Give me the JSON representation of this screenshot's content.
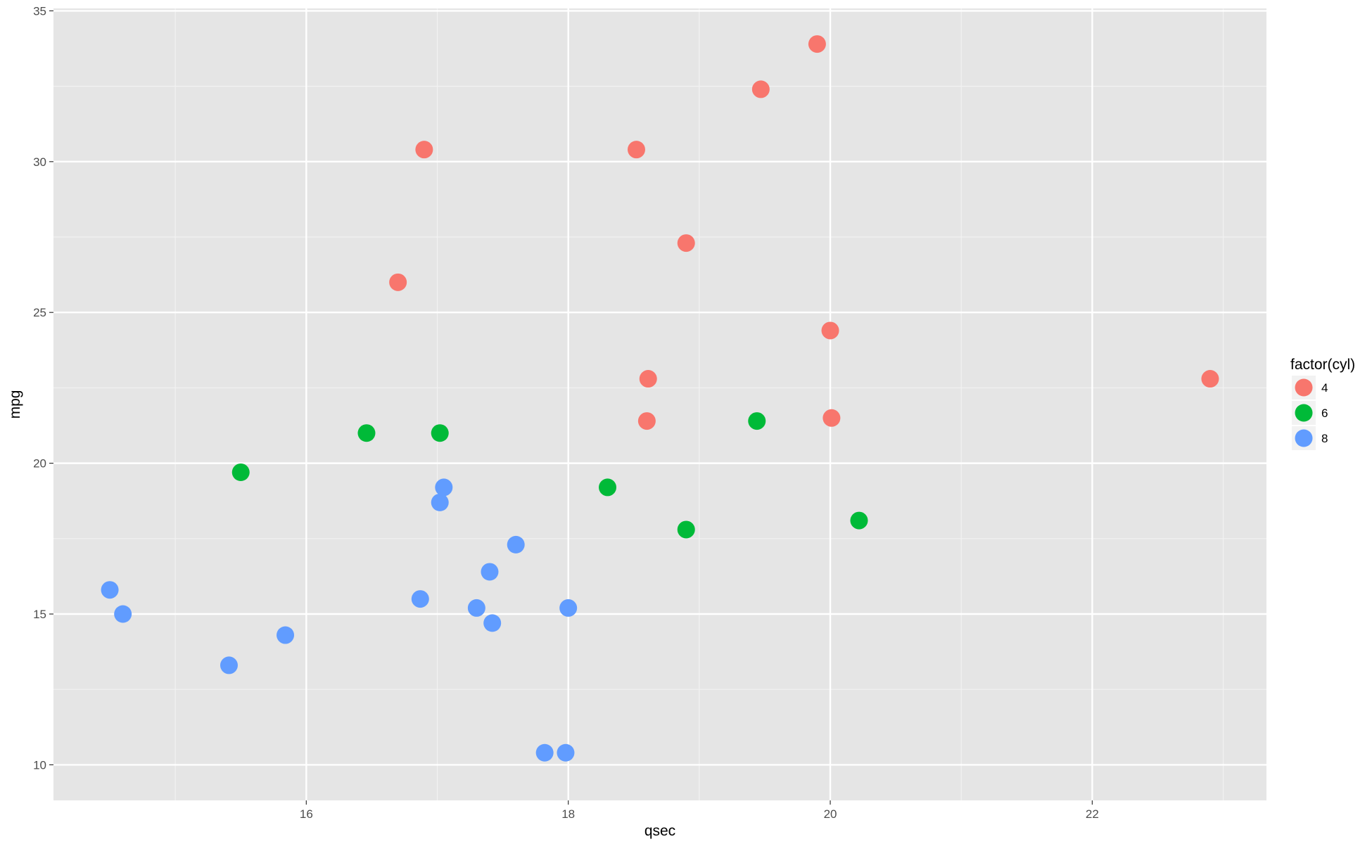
{
  "chart_data": {
    "type": "scatter",
    "title": "",
    "xlabel": "qsec",
    "ylabel": "mpg",
    "xlim": [
      14.07,
      23.33
    ],
    "ylim": [
      8.82,
      35.08
    ],
    "x_ticks": [
      16,
      18,
      20,
      22
    ],
    "x_tick_labels": [
      "16",
      "18",
      "20",
      "22"
    ],
    "x_minor_ticks": [
      15,
      17,
      19,
      21,
      23
    ],
    "y_ticks": [
      10,
      15,
      20,
      25,
      30,
      35
    ],
    "y_tick_labels": [
      "10",
      "15",
      "20",
      "25",
      "30",
      "35"
    ],
    "y_minor_ticks": [
      12.5,
      17.5,
      22.5,
      27.5,
      32.5
    ],
    "grid": true,
    "legend": {
      "title": "factor(cyl)",
      "placement": "right"
    },
    "series": [
      {
        "name": "4",
        "color": "#F8766D",
        "points": [
          [
            18.61,
            22.8
          ],
          [
            20.0,
            24.4
          ],
          [
            22.9,
            22.8
          ],
          [
            19.47,
            32.4
          ],
          [
            18.52,
            30.4
          ],
          [
            19.9,
            33.9
          ],
          [
            20.01,
            21.5
          ],
          [
            18.9,
            27.3
          ],
          [
            16.7,
            26.0
          ],
          [
            16.9,
            30.4
          ],
          [
            18.6,
            21.4
          ]
        ]
      },
      {
        "name": "6",
        "color": "#00BA38",
        "points": [
          [
            16.46,
            21.0
          ],
          [
            17.02,
            21.0
          ],
          [
            19.44,
            21.4
          ],
          [
            20.22,
            18.1
          ],
          [
            18.3,
            19.2
          ],
          [
            18.9,
            17.8
          ],
          [
            15.5,
            19.7
          ]
        ]
      },
      {
        "name": "8",
        "color": "#619CFF",
        "points": [
          [
            17.02,
            18.7
          ],
          [
            15.84,
            14.3
          ],
          [
            17.4,
            16.4
          ],
          [
            17.6,
            17.3
          ],
          [
            18.0,
            15.2
          ],
          [
            17.98,
            10.4
          ],
          [
            17.82,
            10.4
          ],
          [
            17.42,
            14.7
          ],
          [
            16.87,
            15.5
          ],
          [
            17.3,
            15.2
          ],
          [
            15.41,
            13.3
          ],
          [
            17.05,
            19.2
          ],
          [
            14.5,
            15.8
          ],
          [
            14.6,
            15.0
          ]
        ]
      }
    ]
  }
}
